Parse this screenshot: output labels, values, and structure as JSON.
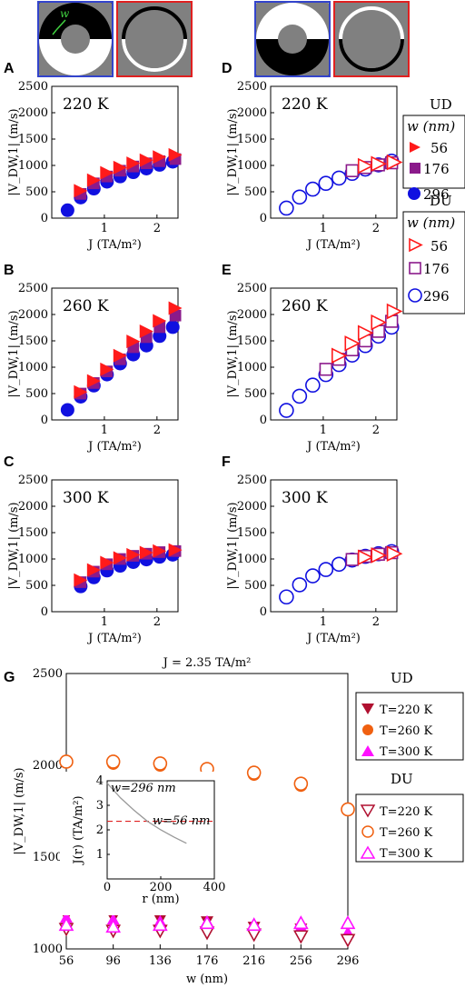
{
  "panel_labels": [
    "A",
    "B",
    "C",
    "D",
    "E",
    "F",
    "G"
  ],
  "colors": {
    "s56": "#ff1a1a",
    "s176": "#8b1a8b",
    "s296": "#1010e0",
    "schematic_ud_border": "#3344cc",
    "schematic_du_border": "#e02020",
    "g_220": "#b01030",
    "g_260": "#f06010",
    "g_300": "#ff10ff"
  },
  "legend_ud": {
    "group": "UD",
    "header": "w (nm)",
    "items": [
      "56",
      "176",
      "296"
    ]
  },
  "legend_du": {
    "group": "DU",
    "header": "w (nm)",
    "items": [
      "56",
      "176",
      "296"
    ]
  },
  "legend_g_ud": {
    "group": "UD",
    "items": [
      "T=220 K",
      "T=260 K",
      "T=300 K"
    ]
  },
  "legend_g_du": {
    "group": "DU",
    "items": [
      "T=220 K",
      "T=260 K",
      "T=300 K"
    ]
  },
  "schematic_w_label": "w",
  "chart_data": [
    {
      "panel": "A",
      "type": "scatter",
      "temp_label": "220 K",
      "xlabel": "J (TA/m²)",
      "ylabel": "|V_DW,1| (m/s)",
      "xlim": [
        0,
        2.4
      ],
      "ylim": [
        0,
        2500
      ],
      "xticks": [
        "1",
        "2"
      ],
      "yticks": [
        "0",
        "500",
        "1000",
        "1500",
        "2000",
        "2500"
      ],
      "filled": true,
      "series": [
        {
          "name": "56",
          "marker": "triangle-right",
          "x": [
            0.55,
            0.8,
            1.05,
            1.3,
            1.55,
            1.8,
            2.05,
            2.35
          ],
          "y": [
            520,
            720,
            860,
            960,
            1040,
            1100,
            1160,
            1200
          ]
        },
        {
          "name": "176",
          "marker": "square",
          "x": [
            0.55,
            0.8,
            1.05,
            1.3,
            1.55,
            1.8,
            2.05,
            2.35
          ],
          "y": [
            460,
            660,
            790,
            900,
            980,
            1040,
            1080,
            1120
          ]
        },
        {
          "name": "296",
          "marker": "circle",
          "x": [
            0.3,
            0.55,
            0.8,
            1.05,
            1.3,
            1.55,
            1.8,
            2.05,
            2.3
          ],
          "y": [
            150,
            390,
            560,
            690,
            790,
            870,
            940,
            1010,
            1070
          ]
        }
      ]
    },
    {
      "panel": "B",
      "type": "scatter",
      "temp_label": "260 K",
      "xlabel": "J (TA/m²)",
      "ylabel": "|V_DW,1| (m/s)",
      "xlim": [
        0,
        2.4
      ],
      "ylim": [
        0,
        2500
      ],
      "xticks": [
        "1",
        "2"
      ],
      "yticks": [
        "0",
        "500",
        "1000",
        "1500",
        "2000",
        "2500"
      ],
      "filled": true,
      "series": [
        {
          "name": "56",
          "marker": "triangle-right",
          "x": [
            0.55,
            0.8,
            1.05,
            1.3,
            1.55,
            1.8,
            2.05,
            2.35
          ],
          "y": [
            530,
            740,
            960,
            1220,
            1490,
            1680,
            1880,
            2120
          ]
        },
        {
          "name": "176",
          "marker": "square",
          "x": [
            0.55,
            0.8,
            1.05,
            1.3,
            1.55,
            1.8,
            2.05,
            2.35
          ],
          "y": [
            500,
            700,
            920,
            1150,
            1380,
            1570,
            1760,
            1980
          ]
        },
        {
          "name": "296",
          "marker": "circle",
          "x": [
            0.3,
            0.55,
            0.8,
            1.05,
            1.3,
            1.55,
            1.8,
            2.05,
            2.3
          ],
          "y": [
            190,
            440,
            650,
            860,
            1070,
            1240,
            1410,
            1590,
            1760
          ]
        }
      ]
    },
    {
      "panel": "C",
      "type": "scatter",
      "temp_label": "300 K",
      "xlabel": "J (TA/m²)",
      "ylabel": "|V_DW,1| (m/s)",
      "xlim": [
        0,
        2.4
      ],
      "ylim": [
        0,
        2500
      ],
      "xticks": [
        "1",
        "2"
      ],
      "yticks": [
        "0",
        "500",
        "1000",
        "1500",
        "2000",
        "2500"
      ],
      "filled": true,
      "series": [
        {
          "name": "56",
          "marker": "triangle-right",
          "x": [
            0.55,
            0.8,
            1.05,
            1.3,
            1.55,
            1.8,
            2.05,
            2.35
          ],
          "y": [
            600,
            790,
            930,
            1020,
            1080,
            1120,
            1150,
            1170
          ]
        },
        {
          "name": "176",
          "marker": "square",
          "x": [
            0.55,
            0.8,
            1.05,
            1.3,
            1.55,
            1.8,
            2.05,
            2.35
          ],
          "y": [
            560,
            760,
            900,
            1000,
            1060,
            1100,
            1130,
            1150
          ]
        },
        {
          "name": "296",
          "marker": "circle",
          "x": [
            0.55,
            0.8,
            1.05,
            1.3,
            1.55,
            1.8,
            2.05,
            2.3
          ],
          "y": [
            480,
            650,
            780,
            870,
            940,
            990,
            1040,
            1080
          ]
        }
      ]
    },
    {
      "panel": "D",
      "type": "scatter",
      "temp_label": "220 K",
      "xlabel": "J (TA/m²)",
      "ylabel": "|V_DW,1| (m/s)",
      "xlim": [
        0,
        2.4
      ],
      "ylim": [
        0,
        2500
      ],
      "xticks": [
        "1",
        "2"
      ],
      "yticks": [
        "0",
        "500",
        "1000",
        "1500",
        "2000",
        "2500"
      ],
      "filled": false,
      "series": [
        {
          "name": "56",
          "marker": "triangle-right",
          "x": [
            1.8,
            2.05,
            2.35
          ],
          "y": [
            990,
            1030,
            1060
          ]
        },
        {
          "name": "176",
          "marker": "square",
          "x": [
            1.55,
            1.8,
            2.05,
            2.3
          ],
          "y": [
            900,
            960,
            1010,
            1050
          ]
        },
        {
          "name": "296",
          "marker": "circle",
          "x": [
            0.3,
            0.55,
            0.8,
            1.05,
            1.3,
            1.55,
            1.8,
            2.05,
            2.3
          ],
          "y": [
            190,
            400,
            550,
            660,
            760,
            850,
            930,
            1010,
            1080
          ]
        }
      ]
    },
    {
      "panel": "E",
      "type": "scatter",
      "temp_label": "260 K",
      "xlabel": "J (TA/m²)",
      "ylabel": "|V_DW,1| (m/s)",
      "xlim": [
        0,
        2.4
      ],
      "ylim": [
        0,
        2500
      ],
      "xticks": [
        "1",
        "2"
      ],
      "yticks": [
        "0",
        "500",
        "1000",
        "1500",
        "2000",
        "2500"
      ],
      "filled": false,
      "series": [
        {
          "name": "56",
          "marker": "triangle-right",
          "x": [
            1.3,
            1.55,
            1.8,
            2.05,
            2.35
          ],
          "y": [
            1220,
            1450,
            1650,
            1850,
            2060
          ]
        },
        {
          "name": "176",
          "marker": "square",
          "x": [
            1.05,
            1.3,
            1.55,
            1.8,
            2.05,
            2.3
          ],
          "y": [
            960,
            1150,
            1330,
            1500,
            1680,
            1870
          ]
        },
        {
          "name": "296",
          "marker": "circle",
          "x": [
            0.3,
            0.55,
            0.8,
            1.05,
            1.3,
            1.55,
            1.8,
            2.05,
            2.3
          ],
          "y": [
            180,
            450,
            660,
            860,
            1050,
            1230,
            1410,
            1590,
            1760
          ]
        }
      ]
    },
    {
      "panel": "F",
      "type": "scatter",
      "temp_label": "300 K",
      "xlabel": "J (TA/m²)",
      "ylabel": "|V_DW,1| (m/s)",
      "xlim": [
        0,
        2.4
      ],
      "ylim": [
        0,
        2500
      ],
      "xticks": [
        "1",
        "2"
      ],
      "yticks": [
        "0",
        "500",
        "1000",
        "1500",
        "2000",
        "2500"
      ],
      "filled": false,
      "series": [
        {
          "name": "56",
          "marker": "triangle-right",
          "x": [
            1.8,
            2.05,
            2.35
          ],
          "y": [
            1030,
            1070,
            1100
          ]
        },
        {
          "name": "176",
          "marker": "square",
          "x": [
            1.55,
            1.8,
            2.05,
            2.3
          ],
          "y": [
            990,
            1050,
            1090,
            1120
          ]
        },
        {
          "name": "296",
          "marker": "circle",
          "x": [
            0.3,
            0.55,
            0.8,
            1.05,
            1.3,
            1.55,
            1.8,
            2.05,
            2.3
          ],
          "y": [
            280,
            510,
            680,
            800,
            900,
            980,
            1050,
            1100,
            1140
          ]
        }
      ]
    },
    {
      "panel": "G",
      "type": "scatter",
      "title": "J = 2.35 TA/m²",
      "xlabel": "w (nm)",
      "ylabel": "|V_DW,1| (m/s)",
      "xlim": [
        56,
        296
      ],
      "ylim": [
        1000,
        2500
      ],
      "xticks": [
        "56",
        "96",
        "136",
        "176",
        "216",
        "256",
        "296"
      ],
      "yticks": [
        "1000",
        "1500",
        "2000",
        "2500"
      ],
      "series": [
        {
          "name": "UD T=220 K",
          "marker": "triangle-down",
          "filled": true,
          "x": [
            56,
            96,
            136,
            176,
            216,
            256,
            296
          ],
          "y": [
            1180,
            1170,
            1160,
            1150,
            1120,
            1110,
            1050
          ]
        },
        {
          "name": "UD T=260 K",
          "marker": "circle",
          "filled": true,
          "x": [
            56,
            96,
            136,
            176,
            216,
            256,
            296
          ],
          "y": [
            2020,
            2010,
            2000,
            1980,
            1950,
            1890,
            1760
          ]
        },
        {
          "name": "UD T=300 K",
          "marker": "triangle-up",
          "filled": true,
          "x": [
            56,
            96,
            136,
            176,
            216,
            256,
            296
          ],
          "y": [
            1170,
            1160,
            1150,
            1150,
            1130,
            1120,
            1090
          ]
        },
        {
          "name": "DU T=220 K",
          "marker": "triangle-down",
          "filled": false,
          "x": [
            56,
            96,
            136,
            176,
            216,
            256,
            296
          ],
          "y": [
            1110,
            1100,
            1100,
            1090,
            1080,
            1070,
            1050
          ]
        },
        {
          "name": "DU T=260 K",
          "marker": "circle",
          "filled": false,
          "x": [
            56,
            96,
            136,
            176,
            216,
            256,
            296
          ],
          "y": [
            2020,
            2020,
            2010,
            1980,
            1960,
            1900,
            1760
          ]
        },
        {
          "name": "DU T=300 K",
          "marker": "triangle-up",
          "filled": false,
          "x": [
            56,
            96,
            136,
            176,
            216,
            256,
            296
          ],
          "y": [
            1130,
            1120,
            1130,
            1140,
            1130,
            1140,
            1140
          ]
        }
      ],
      "inset": {
        "xlabel": "r (nm)",
        "ylabel": "J(r) (TA/m²)",
        "xlim": [
          0,
          400
        ],
        "ylim": [
          0,
          4
        ],
        "xticks": [
          "0",
          "200",
          "400"
        ],
        "yticks": [
          "1",
          "2",
          "3",
          "4"
        ],
        "label_296": "w=296 nm",
        "label_56": "w=56 nm",
        "ref_line_y": 2.35,
        "curve_r": [
          0,
          50,
          100,
          150,
          200,
          250,
          296
        ],
        "curve_j": [
          3.9,
          3.3,
          2.8,
          2.35,
          2.0,
          1.7,
          1.45
        ]
      }
    }
  ]
}
